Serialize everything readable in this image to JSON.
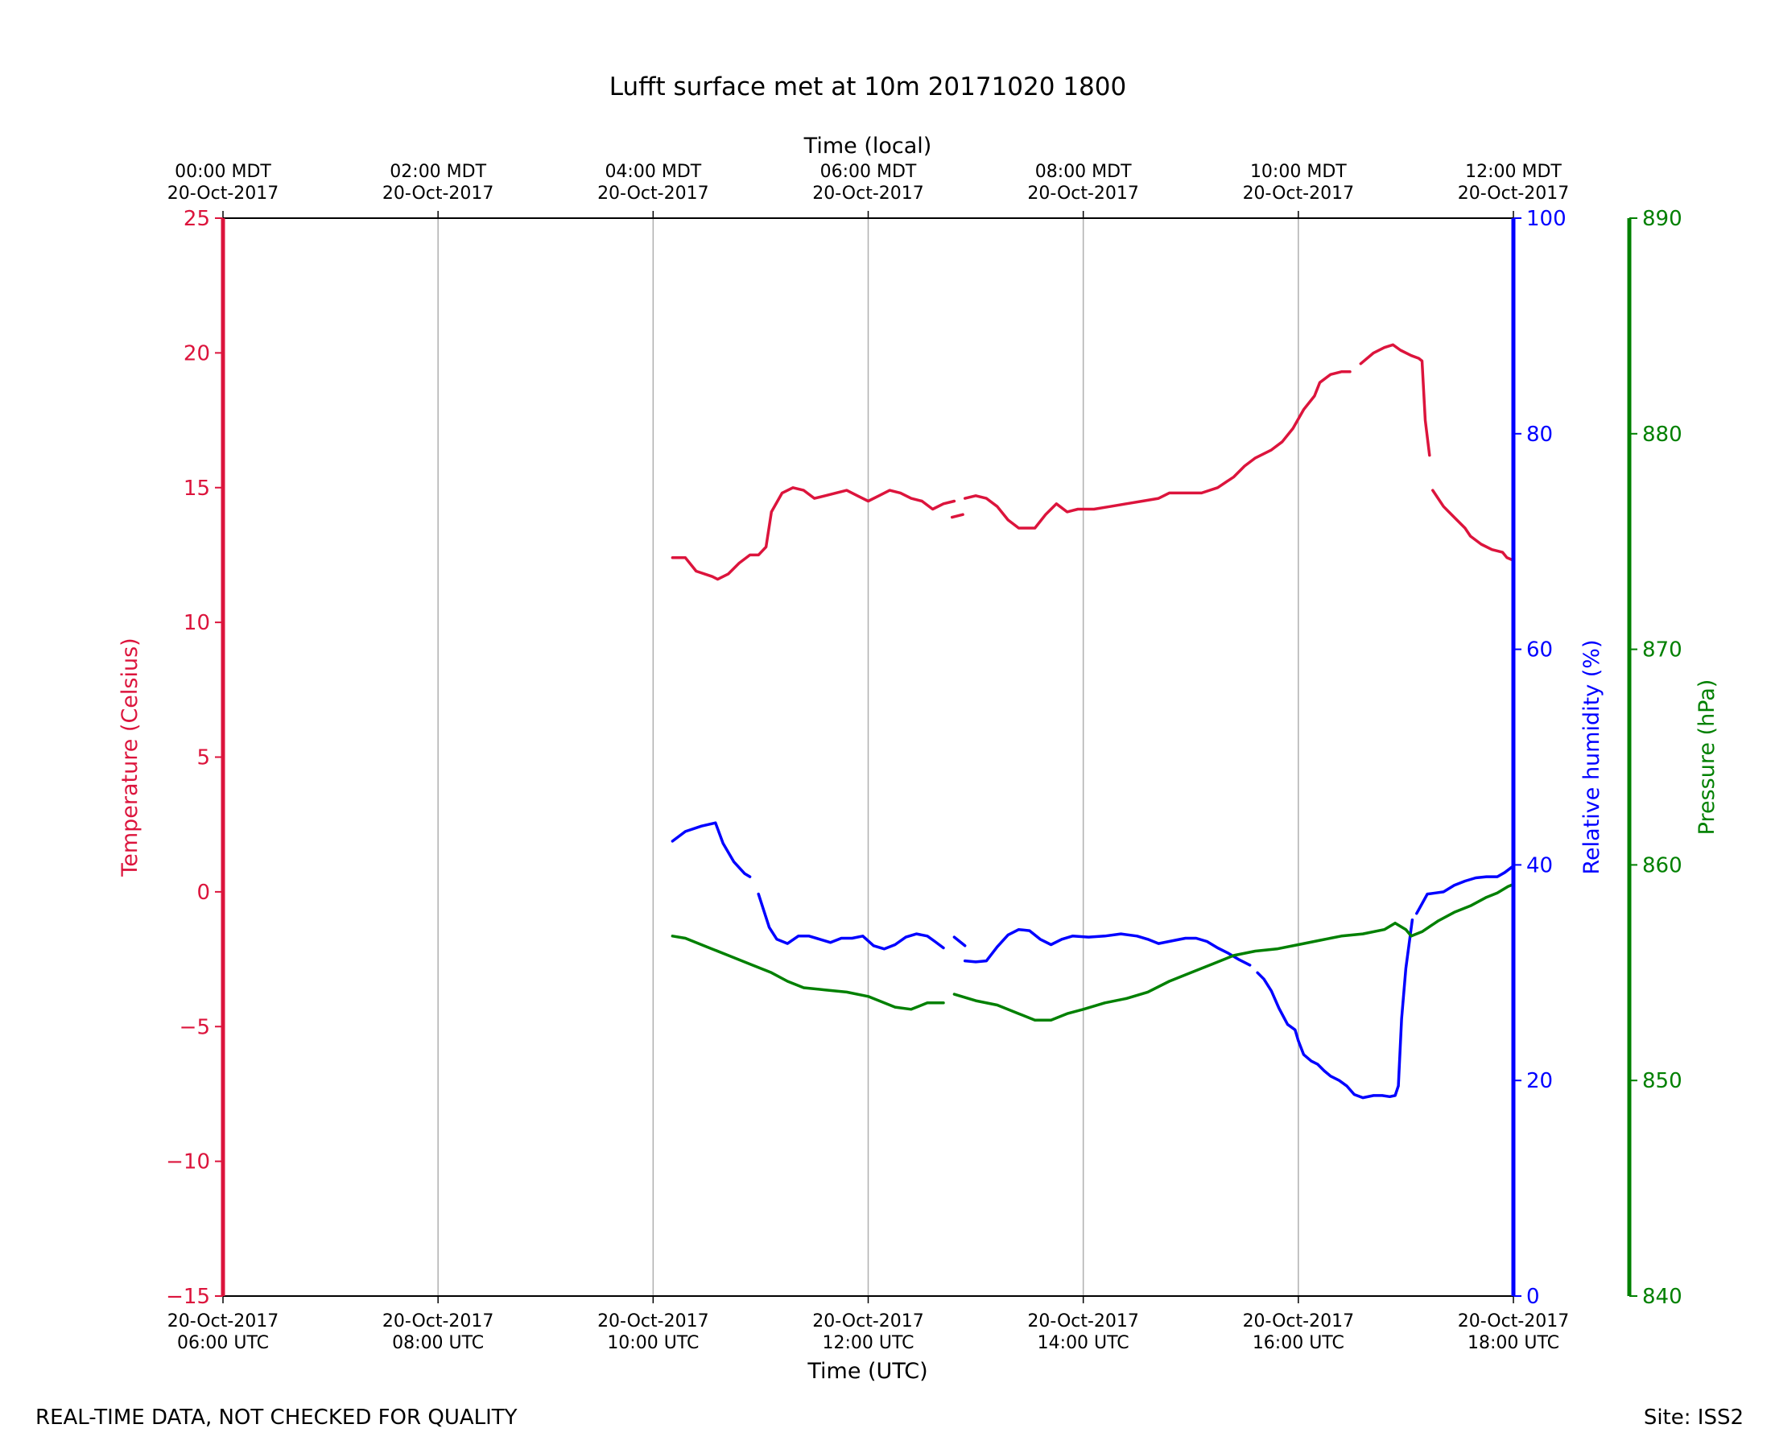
{
  "footer": {
    "note": "REAL-TIME DATA, NOT CHECKED FOR QUALITY",
    "site": "Site: ISS2"
  },
  "chart_data": {
    "type": "line",
    "title": "Lufft surface met at 10m 20171020 1800",
    "xlabel": "Time (UTC)",
    "x2label": "Time (local)",
    "x_unit": "hours since 20-Oct-2017 06:00 UTC",
    "xlim": [
      0,
      12
    ],
    "grid": "vertical",
    "colors": {
      "temperature": "#dc143c",
      "humidity": "#0000ff",
      "pressure": "#008000",
      "axis": "#000000",
      "grid": "#b0b0b0"
    },
    "x_ticks": [
      {
        "x": 0,
        "utc_date": "20-Oct-2017",
        "utc_time": "06:00 UTC",
        "local_time": "00:00 MDT",
        "local_date": "20-Oct-2017"
      },
      {
        "x": 2,
        "utc_date": "20-Oct-2017",
        "utc_time": "08:00 UTC",
        "local_time": "02:00 MDT",
        "local_date": "20-Oct-2017"
      },
      {
        "x": 4,
        "utc_date": "20-Oct-2017",
        "utc_time": "10:00 UTC",
        "local_time": "04:00 MDT",
        "local_date": "20-Oct-2017"
      },
      {
        "x": 6,
        "utc_date": "20-Oct-2017",
        "utc_time": "12:00 UTC",
        "local_time": "06:00 MDT",
        "local_date": "20-Oct-2017"
      },
      {
        "x": 8,
        "utc_date": "20-Oct-2017",
        "utc_time": "14:00 UTC",
        "local_time": "08:00 MDT",
        "local_date": "20-Oct-2017"
      },
      {
        "x": 10,
        "utc_date": "20-Oct-2017",
        "utc_time": "16:00 UTC",
        "local_time": "10:00 MDT",
        "local_date": "20-Oct-2017"
      },
      {
        "x": 12,
        "utc_date": "20-Oct-2017",
        "utc_time": "18:00 UTC",
        "local_time": "12:00 MDT",
        "local_date": "20-Oct-2017"
      }
    ],
    "axes": [
      {
        "key": "temperature",
        "label": "Temperature (Celsius)",
        "ylim": [
          -15,
          25
        ],
        "ticks": [
          {
            "v": -15,
            "t": "−15"
          },
          {
            "v": -10,
            "t": "−10"
          },
          {
            "v": -5,
            "t": "−5"
          },
          {
            "v": 0,
            "t": "0"
          },
          {
            "v": 5,
            "t": "5"
          },
          {
            "v": 10,
            "t": "10"
          },
          {
            "v": 15,
            "t": "15"
          },
          {
            "v": 20,
            "t": "20"
          },
          {
            "v": 25,
            "t": "25"
          }
        ]
      },
      {
        "key": "humidity",
        "label": "Relative humidity (%)",
        "ylim": [
          0,
          100
        ],
        "ticks": [
          {
            "v": 0,
            "t": "0"
          },
          {
            "v": 20,
            "t": "20"
          },
          {
            "v": 40,
            "t": "40"
          },
          {
            "v": 60,
            "t": "60"
          },
          {
            "v": 80,
            "t": "80"
          },
          {
            "v": 100,
            "t": "100"
          }
        ]
      },
      {
        "key": "pressure",
        "label": "Pressure (hPa)",
        "ylim": [
          840,
          890
        ],
        "ticks": [
          {
            "v": 840,
            "t": "840"
          },
          {
            "v": 850,
            "t": "850"
          },
          {
            "v": 860,
            "t": "860"
          },
          {
            "v": 870,
            "t": "870"
          },
          {
            "v": 880,
            "t": "880"
          },
          {
            "v": 890,
            "t": "890"
          }
        ]
      }
    ],
    "series": [
      {
        "name": "Temperature",
        "axis": "temperature",
        "segments": [
          [
            [
              4.18,
              12.4
            ],
            [
              4.3,
              12.4
            ],
            [
              4.4,
              11.9
            ],
            [
              4.55,
              11.7
            ],
            [
              4.6,
              11.6
            ],
            [
              4.7,
              11.8
            ],
            [
              4.8,
              12.2
            ],
            [
              4.9,
              12.5
            ],
            [
              4.98,
              12.5
            ],
            [
              5.05,
              12.8
            ],
            [
              5.1,
              14.1
            ],
            [
              5.2,
              14.8
            ],
            [
              5.3,
              15.0
            ],
            [
              5.4,
              14.9
            ],
            [
              5.5,
              14.6
            ],
            [
              5.6,
              14.7
            ],
            [
              5.7,
              14.8
            ],
            [
              5.8,
              14.9
            ],
            [
              5.9,
              14.7
            ],
            [
              6.0,
              14.5
            ],
            [
              6.1,
              14.7
            ],
            [
              6.2,
              14.9
            ],
            [
              6.3,
              14.8
            ],
            [
              6.4,
              14.6
            ],
            [
              6.5,
              14.5
            ],
            [
              6.6,
              14.2
            ],
            [
              6.7,
              14.4
            ],
            [
              6.8,
              14.5
            ]
          ],
          [
            [
              6.78,
              13.9
            ],
            [
              6.88,
              14.0
            ]
          ],
          [
            [
              6.9,
              14.6
            ],
            [
              7.0,
              14.7
            ],
            [
              7.1,
              14.6
            ],
            [
              7.2,
              14.3
            ],
            [
              7.3,
              13.8
            ],
            [
              7.4,
              13.5
            ],
            [
              7.55,
              13.5
            ],
            [
              7.65,
              14.0
            ],
            [
              7.75,
              14.4
            ],
            [
              7.85,
              14.1
            ],
            [
              7.95,
              14.2
            ],
            [
              8.1,
              14.2
            ],
            [
              8.25,
              14.3
            ],
            [
              8.4,
              14.4
            ],
            [
              8.55,
              14.5
            ],
            [
              8.7,
              14.6
            ],
            [
              8.8,
              14.8
            ],
            [
              8.95,
              14.8
            ],
            [
              9.1,
              14.8
            ],
            [
              9.25,
              15.0
            ],
            [
              9.4,
              15.4
            ],
            [
              9.5,
              15.8
            ],
            [
              9.6,
              16.1
            ],
            [
              9.75,
              16.4
            ],
            [
              9.85,
              16.7
            ],
            [
              9.95,
              17.2
            ],
            [
              10.05,
              17.9
            ],
            [
              10.15,
              18.4
            ],
            [
              10.2,
              18.9
            ],
            [
              10.3,
              19.2
            ],
            [
              10.4,
              19.3
            ],
            [
              10.48,
              19.3
            ]
          ],
          [
            [
              10.58,
              19.6
            ],
            [
              10.7,
              20.0
            ],
            [
              10.8,
              20.2
            ],
            [
              10.88,
              20.3
            ],
            [
              10.95,
              20.1
            ],
            [
              11.05,
              19.9
            ],
            [
              11.12,
              19.8
            ],
            [
              11.15,
              19.7
            ],
            [
              11.18,
              17.5
            ],
            [
              11.22,
              16.2
            ]
          ],
          [
            [
              11.25,
              14.9
            ],
            [
              11.35,
              14.3
            ],
            [
              11.45,
              13.9
            ],
            [
              11.55,
              13.5
            ],
            [
              11.6,
              13.2
            ],
            [
              11.7,
              12.9
            ],
            [
              11.8,
              12.7
            ],
            [
              11.9,
              12.6
            ],
            [
              11.94,
              12.4
            ],
            [
              12.0,
              12.3
            ]
          ]
        ]
      },
      {
        "name": "Relative humidity",
        "axis": "humidity",
        "segments": [
          [
            [
              4.18,
              42.2
            ],
            [
              4.3,
              43.1
            ],
            [
              4.45,
              43.6
            ],
            [
              4.58,
              43.9
            ],
            [
              4.65,
              42.0
            ],
            [
              4.75,
              40.3
            ],
            [
              4.85,
              39.2
            ],
            [
              4.9,
              38.9
            ]
          ],
          [
            [
              4.98,
              37.3
            ],
            [
              5.08,
              34.2
            ],
            [
              5.15,
              33.1
            ],
            [
              5.25,
              32.7
            ],
            [
              5.35,
              33.4
            ],
            [
              5.45,
              33.4
            ],
            [
              5.55,
              33.1
            ],
            [
              5.65,
              32.8
            ],
            [
              5.75,
              33.2
            ],
            [
              5.85,
              33.2
            ],
            [
              5.95,
              33.4
            ],
            [
              6.05,
              32.5
            ],
            [
              6.15,
              32.2
            ],
            [
              6.25,
              32.6
            ],
            [
              6.35,
              33.3
            ],
            [
              6.45,
              33.6
            ],
            [
              6.55,
              33.4
            ],
            [
              6.62,
              32.9
            ],
            [
              6.7,
              32.3
            ]
          ],
          [
            [
              6.8,
              33.3
            ],
            [
              6.9,
              32.5
            ]
          ],
          [
            [
              6.9,
              31.1
            ],
            [
              7.0,
              31.0
            ],
            [
              7.1,
              31.1
            ],
            [
              7.2,
              32.4
            ],
            [
              7.3,
              33.5
            ],
            [
              7.4,
              34.0
            ],
            [
              7.5,
              33.9
            ],
            [
              7.6,
              33.1
            ],
            [
              7.7,
              32.6
            ],
            [
              7.8,
              33.1
            ],
            [
              7.9,
              33.4
            ],
            [
              8.05,
              33.3
            ],
            [
              8.2,
              33.4
            ],
            [
              8.35,
              33.6
            ],
            [
              8.5,
              33.4
            ],
            [
              8.6,
              33.1
            ],
            [
              8.7,
              32.7
            ],
            [
              8.85,
              33.0
            ],
            [
              8.95,
              33.2
            ],
            [
              9.05,
              33.2
            ],
            [
              9.15,
              32.9
            ],
            [
              9.25,
              32.3
            ],
            [
              9.35,
              31.8
            ],
            [
              9.45,
              31.2
            ],
            [
              9.55,
              30.7
            ]
          ],
          [
            [
              9.62,
              30.0
            ],
            [
              9.68,
              29.4
            ],
            [
              9.75,
              28.3
            ],
            [
              9.82,
              26.7
            ],
            [
              9.9,
              25.2
            ],
            [
              9.97,
              24.7
            ],
            [
              10.0,
              23.7
            ],
            [
              10.05,
              22.4
            ],
            [
              10.12,
              21.8
            ],
            [
              10.18,
              21.5
            ],
            [
              10.24,
              20.9
            ],
            [
              10.3,
              20.4
            ],
            [
              10.38,
              20.0
            ],
            [
              10.45,
              19.5
            ],
            [
              10.52,
              18.7
            ],
            [
              10.6,
              18.4
            ],
            [
              10.7,
              18.6
            ],
            [
              10.78,
              18.6
            ],
            [
              10.85,
              18.5
            ],
            [
              10.9,
              18.6
            ],
            [
              10.93,
              19.5
            ],
            [
              10.96,
              25.7
            ],
            [
              11.0,
              30.4
            ],
            [
              11.06,
              34.9
            ]
          ],
          [
            [
              11.1,
              35.5
            ],
            [
              11.15,
              36.4
            ],
            [
              11.2,
              37.3
            ],
            [
              11.28,
              37.4
            ],
            [
              11.35,
              37.5
            ],
            [
              11.45,
              38.1
            ],
            [
              11.55,
              38.5
            ],
            [
              11.65,
              38.8
            ],
            [
              11.75,
              38.9
            ],
            [
              11.85,
              38.9
            ],
            [
              11.92,
              39.3
            ],
            [
              12.0,
              39.9
            ]
          ]
        ]
      },
      {
        "name": "Pressure",
        "axis": "pressure",
        "segments": [
          [
            [
              4.18,
              856.7
            ],
            [
              4.3,
              856.6
            ],
            [
              4.5,
              856.2
            ],
            [
              4.7,
              855.8
            ],
            [
              4.9,
              855.4
            ],
            [
              5.1,
              855.0
            ],
            [
              5.25,
              854.6
            ],
            [
              5.4,
              854.3
            ],
            [
              5.6,
              854.2
            ],
            [
              5.8,
              854.1
            ],
            [
              6.0,
              853.9
            ],
            [
              6.1,
              853.7
            ],
            [
              6.25,
              853.4
            ],
            [
              6.4,
              853.3
            ],
            [
              6.55,
              853.6
            ],
            [
              6.7,
              853.6
            ]
          ],
          [
            [
              6.8,
              854.0
            ],
            [
              7.0,
              853.7
            ],
            [
              7.2,
              853.5
            ],
            [
              7.4,
              853.1
            ],
            [
              7.55,
              852.8
            ],
            [
              7.7,
              852.8
            ],
            [
              7.85,
              853.1
            ],
            [
              8.0,
              853.3
            ],
            [
              8.2,
              853.6
            ],
            [
              8.4,
              853.8
            ],
            [
              8.6,
              854.1
            ],
            [
              8.8,
              854.6
            ],
            [
              9.0,
              855.0
            ],
            [
              9.2,
              855.4
            ],
            [
              9.4,
              855.8
            ],
            [
              9.6,
              856.0
            ],
            [
              9.8,
              856.1
            ],
            [
              10.0,
              856.3
            ],
            [
              10.2,
              856.5
            ],
            [
              10.4,
              856.7
            ],
            [
              10.6,
              856.8
            ],
            [
              10.8,
              857.0
            ],
            [
              10.9,
              857.3
            ],
            [
              11.0,
              857.0
            ],
            [
              11.05,
              856.7
            ],
            [
              11.15,
              856.9
            ],
            [
              11.3,
              857.4
            ],
            [
              11.45,
              857.8
            ],
            [
              11.6,
              858.1
            ],
            [
              11.75,
              858.5
            ],
            [
              11.85,
              858.7
            ],
            [
              11.95,
              859.0
            ],
            [
              12.0,
              859.1
            ]
          ]
        ]
      }
    ]
  }
}
